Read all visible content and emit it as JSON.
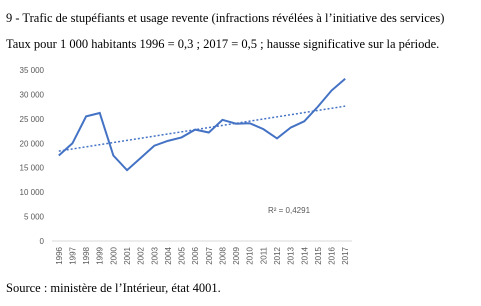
{
  "chart_data": {
    "type": "line",
    "title": "9 - Trafic de stupéfiants et usage revente (infractions révélées à l’initiative des services)",
    "subtitle": "Taux pour 1 000 habitants 1996 = 0,3 ; 2017 = 0,5 ; hausse significative sur la période.",
    "source": "Source : ministère de l’Intérieur, état 4001.",
    "categories": [
      "1996",
      "1997",
      "1998",
      "1999",
      "2000",
      "2001",
      "2002",
      "2003",
      "2004",
      "2005",
      "2006",
      "2007",
      "2008",
      "2009",
      "2010",
      "2011",
      "2012",
      "2013",
      "2014",
      "2015",
      "2016",
      "2017"
    ],
    "series": [
      {
        "color": "#4472c4",
        "values": [
          17500,
          20000,
          25500,
          26200,
          17500,
          14500,
          17000,
          19500,
          20500,
          21200,
          22800,
          22200,
          24800,
          24000,
          24100,
          22900,
          21000,
          23200,
          24500,
          27500,
          30800,
          33200
        ]
      }
    ],
    "trendline": {
      "color": "#4472c4",
      "values": [
        18400,
        27600
      ],
      "label": "R² = 0,4291"
    },
    "ylim": [
      0,
      35000
    ],
    "yticks": [
      0,
      {
        "value": 5000,
        "label": "5 000"
      },
      {
        "value": 10000,
        "label": "10 000"
      },
      {
        "value": 15000,
        "label": "15 000"
      },
      {
        "value": 20000,
        "label": "20 000"
      },
      {
        "value": 25000,
        "label": "25 000"
      },
      {
        "value": 30000,
        "label": "30 000"
      },
      {
        "value": 35000,
        "label": "35 000"
      }
    ],
    "grid": false
  }
}
